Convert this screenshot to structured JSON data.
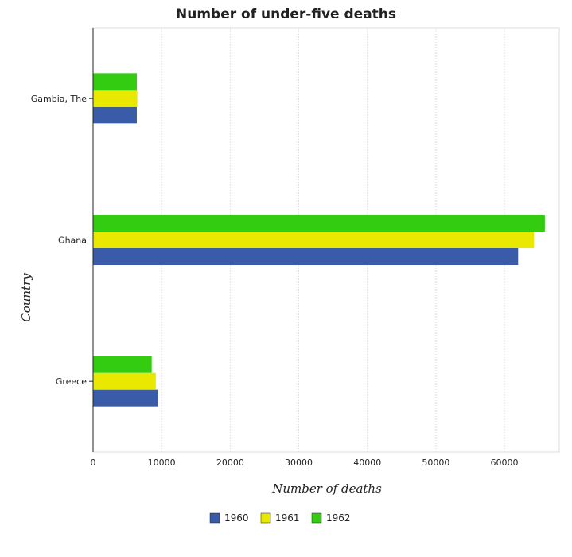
{
  "chart_data": {
    "type": "bar",
    "orientation": "horizontal",
    "title": "Number of under-five deaths",
    "xlabel": "Number of deaths",
    "ylabel": "Country",
    "categories": [
      "Gambia, The",
      "Ghana",
      "Greece"
    ],
    "series": [
      {
        "name": "1960",
        "color": "#3a5ba8",
        "values": [
          6380,
          62000,
          9450
        ]
      },
      {
        "name": "1961",
        "color": "#e8e800",
        "values": [
          6450,
          64300,
          9150
        ]
      },
      {
        "name": "1962",
        "color": "#33cc11",
        "values": [
          6380,
          65900,
          8550
        ]
      }
    ],
    "xlim": [
      0,
      68000
    ],
    "xticks": [
      0,
      10000,
      20000,
      30000,
      40000,
      50000,
      60000
    ],
    "xtick_labels": [
      "0",
      "10000",
      "20000",
      "30000",
      "40000",
      "50000",
      "60000"
    ],
    "grid": "vertical",
    "legend_position": "bottom"
  }
}
